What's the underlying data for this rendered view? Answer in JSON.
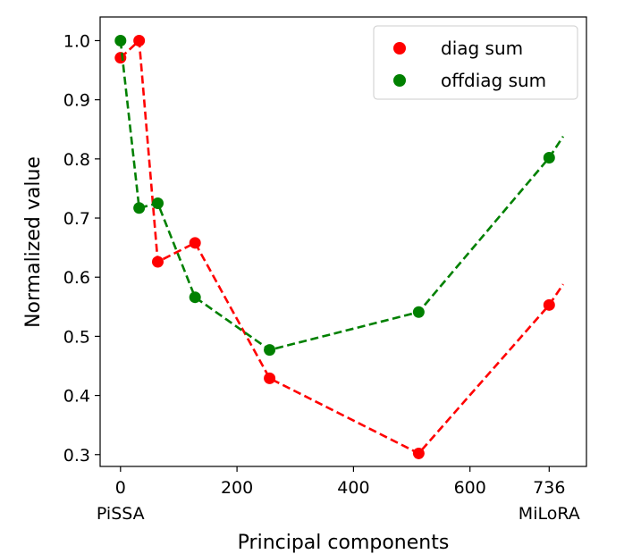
{
  "chart_data": {
    "type": "line",
    "xlabel": "Principal components",
    "ylabel": "Normalized value",
    "xlim": [
      -35,
      800
    ],
    "ylim": [
      0.28,
      1.04
    ],
    "x_ticks": [
      0,
      200,
      400,
      600,
      736
    ],
    "x_tick_sublabels": [
      {
        "x": 0,
        "label": "PiSSA"
      },
      {
        "x": 736,
        "label": "MiLoRA"
      }
    ],
    "y_ticks": [
      0.3,
      0.4,
      0.5,
      0.6,
      0.7,
      0.8,
      0.9,
      1.0
    ],
    "grid": false,
    "legend_position": "top-right",
    "series": [
      {
        "name": "diag sum",
        "color": "#ff0000",
        "points": [
          [
            0,
            0.971
          ],
          [
            32,
            1.0
          ],
          [
            64,
            0.626
          ],
          [
            128,
            0.658
          ],
          [
            256,
            0.429
          ],
          [
            512,
            0.302
          ],
          [
            736,
            0.553
          ]
        ],
        "trend_end": [
          760,
          0.588
        ]
      },
      {
        "name": "offdiag sum",
        "color": "#008000",
        "points": [
          [
            0,
            1.0
          ],
          [
            32,
            0.717
          ],
          [
            64,
            0.725
          ],
          [
            128,
            0.566
          ],
          [
            256,
            0.477
          ],
          [
            512,
            0.541
          ],
          [
            736,
            0.802
          ]
        ],
        "trend_end": [
          760,
          0.838
        ]
      }
    ]
  }
}
